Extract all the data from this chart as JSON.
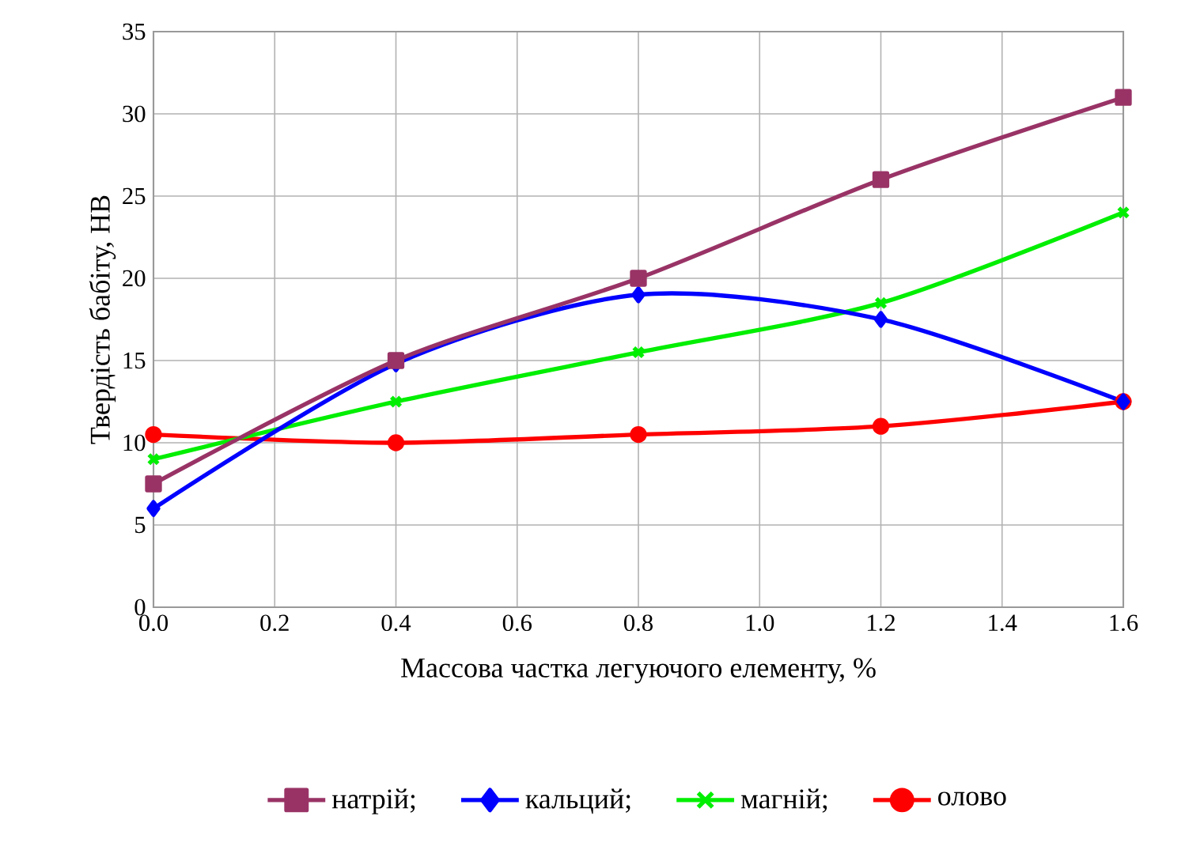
{
  "chart_data": {
    "type": "line",
    "xlabel": "Массова частка легуючого елементу, %",
    "ylabel": "Твердість бабіту, HB",
    "x": [
      0.0,
      0.4,
      0.8,
      1.2,
      1.6
    ],
    "series": [
      {
        "name": "натрій;",
        "color": "#993366",
        "marker": "square",
        "values": [
          7.5,
          15,
          20,
          26,
          31
        ]
      },
      {
        "name": "кальций;",
        "color": "#0000ff",
        "marker": "diamond",
        "values": [
          6,
          14.8,
          19,
          17.5,
          12.5
        ]
      },
      {
        "name": "магній;",
        "color": "#00ee00",
        "marker": "cross",
        "values": [
          9,
          12.5,
          15.5,
          18.5,
          24
        ]
      },
      {
        "name": "олово",
        "color": "#ff0000",
        "marker": "circle",
        "values": [
          10.5,
          10,
          10.5,
          11,
          12.5
        ]
      }
    ],
    "xlim": [
      0.0,
      1.6
    ],
    "ylim": [
      0,
      35
    ],
    "xticks": [
      {
        "value": 0.0,
        "label": "0.0"
      },
      0.2,
      0.4,
      0.6,
      0.8,
      {
        "value": 1.0,
        "label": "1.0"
      },
      1.2,
      1.4,
      1.6
    ],
    "yticks": [
      0,
      5,
      10,
      15,
      20,
      25,
      30,
      35
    ],
    "grid": true,
    "legend": "bottom"
  }
}
